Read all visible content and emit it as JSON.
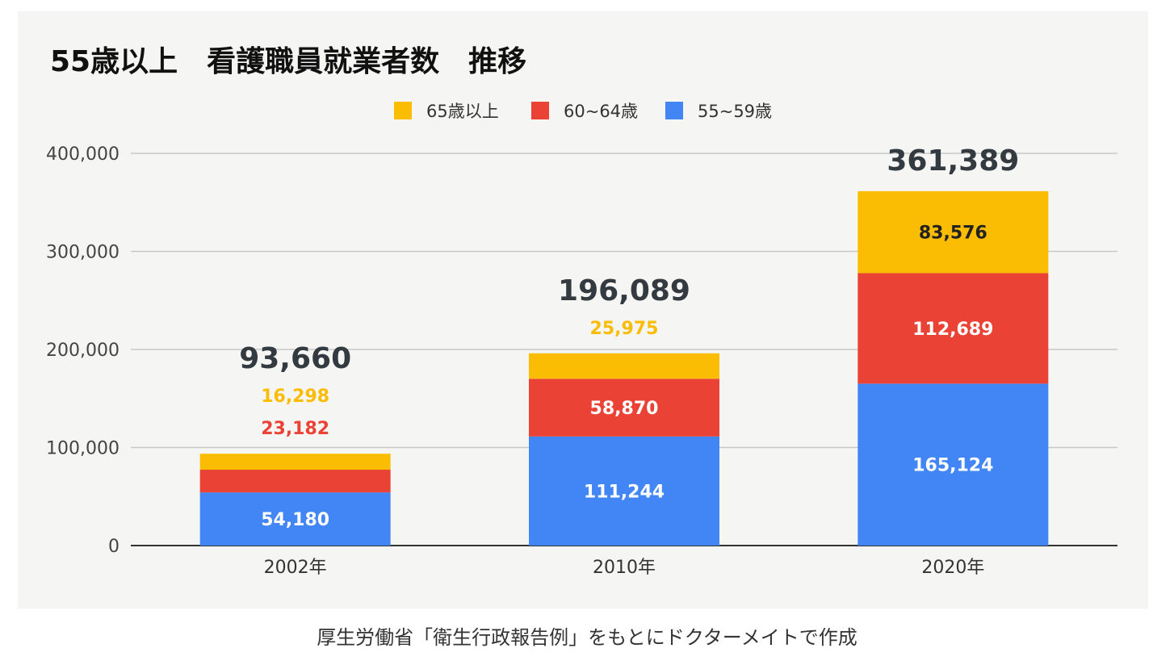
{
  "chart_data": {
    "type": "bar",
    "stacked": true,
    "title": "55歳以上　看護職員就業者数　推移",
    "categories": [
      "2002年",
      "2010年",
      "2020年"
    ],
    "series": [
      {
        "name": "55~59歳",
        "color": "#4285f4",
        "values": [
          54180,
          111244,
          165124
        ],
        "labels": [
          "54,180",
          "111,244",
          "165,124"
        ]
      },
      {
        "name": "60~64歳",
        "color": "#ea4335",
        "values": [
          23182,
          58870,
          112689
        ],
        "labels": [
          "23,182",
          "58,870",
          "112,689"
        ]
      },
      {
        "name": "65歳以上",
        "color": "#fbbc04",
        "values": [
          16298,
          25975,
          83576
        ],
        "labels": [
          "16,298",
          "25,975",
          "83,576"
        ]
      }
    ],
    "legend_order": [
      "65歳以上",
      "60~64歳",
      "55~59歳"
    ],
    "totals": [
      "93,660",
      "196,089",
      "361,389"
    ],
    "ylim": [
      0,
      400000
    ],
    "yticks": [
      0,
      100000,
      200000,
      300000,
      400000
    ],
    "ytick_labels": [
      "0",
      "100,000",
      "200,000",
      "300,000",
      "400,000"
    ],
    "xlabel": "",
    "ylabel": "",
    "legend_position": "top-center",
    "grid": true
  },
  "caption": "厚生労働省「衛生行政報告例」をもとにドクターメイトで作成"
}
